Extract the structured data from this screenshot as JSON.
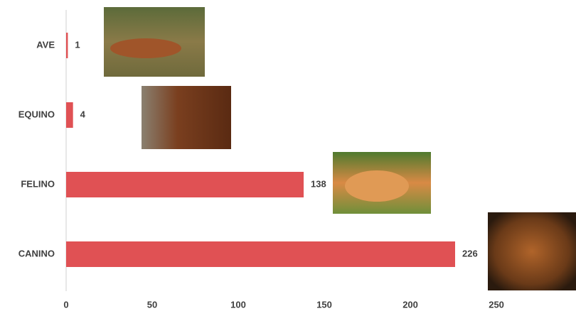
{
  "chart_data": {
    "type": "bar",
    "orientation": "horizontal",
    "categories": [
      "AVE",
      "EQUINO",
      "FELINO",
      "CANINO"
    ],
    "values": [
      1,
      4,
      138,
      226
    ],
    "color": "#e05154",
    "xlim": [
      0,
      295
    ],
    "xticks": [
      0,
      50,
      100,
      150,
      200,
      250
    ],
    "grid": false
  }
}
